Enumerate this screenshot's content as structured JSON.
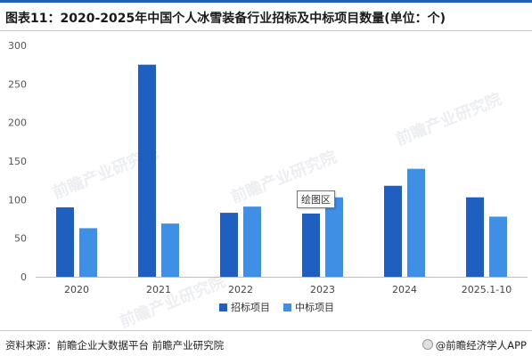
{
  "title": "图表11：2020-2025年中国个人冰雪装备行业招标及中标项目数量(单位：个)",
  "source": "资料来源：前瞻企业大数据平台 前瞻产业研究院",
  "credit": "@前瞻经济学人APP",
  "tooltip": "绘图区",
  "watermark": "前瞻产业研究院",
  "colors": {
    "bid": "#1f5fc0",
    "win": "#3f8fe6",
    "accent": "#1f5fb5"
  },
  "chart_data": {
    "type": "bar",
    "categories": [
      "2020",
      "2021",
      "2022",
      "2023",
      "2024",
      "2025.1-10"
    ],
    "series": [
      {
        "name": "招标项目",
        "values": [
          90,
          275,
          83,
          82,
          118,
          103
        ]
      },
      {
        "name": "中标项目",
        "values": [
          63,
          69,
          91,
          103,
          140,
          78
        ]
      }
    ],
    "ylim": [
      0,
      300
    ],
    "yticks": [
      "0",
      "50",
      "100",
      "150",
      "200",
      "250",
      "300"
    ],
    "legend": "bottom",
    "grid": false
  }
}
